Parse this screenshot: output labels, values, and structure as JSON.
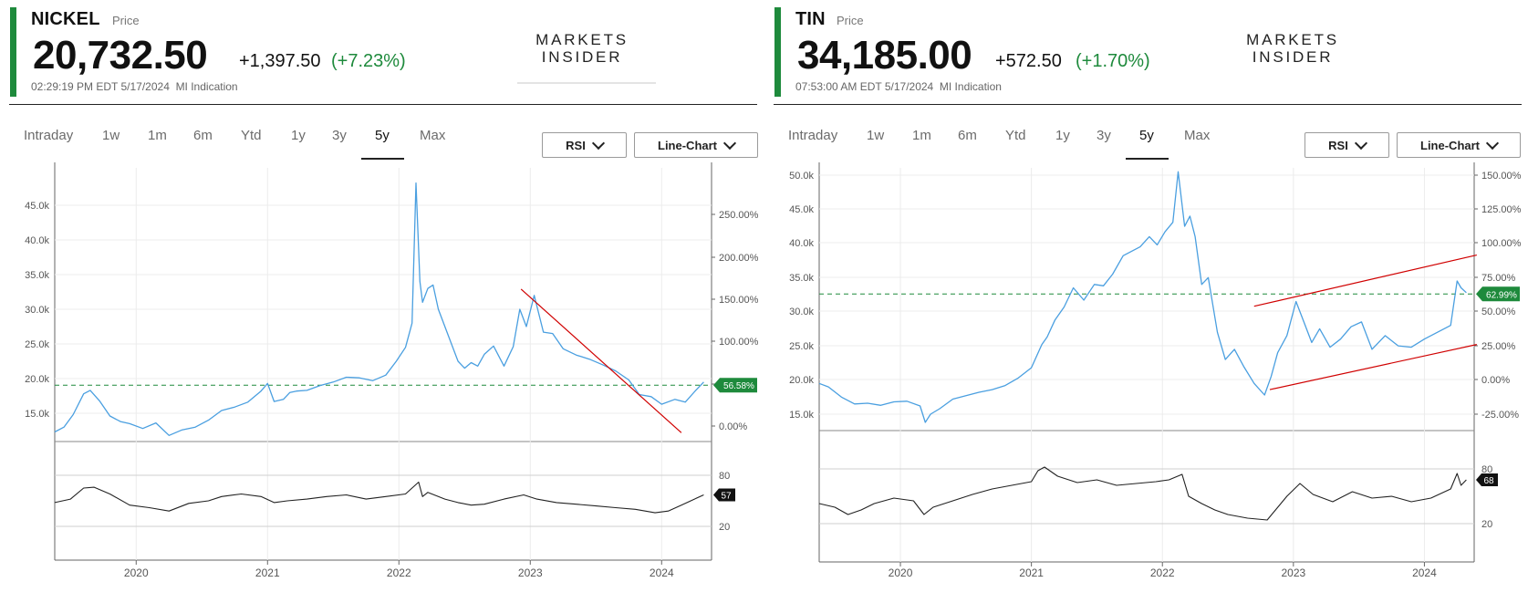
{
  "brand": {
    "logo_line1": "MARKETS",
    "logo_line2": "INSIDER"
  },
  "range_tabs": [
    "Intraday",
    "1w",
    "1m",
    "6m",
    "Ytd",
    "1y",
    "3y",
    "5y",
    "Max"
  ],
  "active_tab": "5y",
  "dropdowns": {
    "indicator": "RSI",
    "chart_type": "Line-Chart"
  },
  "colors": {
    "accent": "#1e8a3c",
    "price_line": "#4a9fe0",
    "trend_line": "#d00000",
    "rsi_line": "#222222",
    "ref_line": "#1e8a3c"
  },
  "icons": {
    "dropdown": "chevron-down-icon"
  },
  "panels": [
    {
      "symbol": "NICKEL",
      "price_label": "Price",
      "price": "20,732.50",
      "change": "+1,397.50",
      "change_pct": "(+7.23%)",
      "timestamp": "02:29:19 PM EDT 5/17/2024",
      "source": "MI Indication",
      "chart_data": {
        "type": "line",
        "x_ticks": [
          "2020",
          "2021",
          "2022",
          "2023",
          "2024"
        ],
        "y_ticks": [
          "15.0k",
          "20.0k",
          "25.0k",
          "30.0k",
          "35.0k",
          "40.0k",
          "45.0k"
        ],
        "y_ticks_pct": [
          "0.00%",
          "50.00%",
          "100.00%",
          "150.00%",
          "200.00%",
          "250.00%"
        ],
        "ylim": [
          11000,
          48500
        ],
        "reference_value": 19050,
        "reference_label": "56.58%",
        "series": [
          {
            "x": [
              2019.38,
              2019.45,
              2019.52,
              2019.6,
              2019.65,
              2019.72,
              2019.8,
              2019.88,
              2019.95,
              2020.05,
              2020.15,
              2020.25,
              2020.35,
              2020.45,
              2020.55,
              2020.65,
              2020.75,
              2020.85,
              2020.95,
              2021.0,
              2021.05,
              2021.12,
              2021.17,
              2021.22,
              2021.3,
              2021.4,
              2021.5,
              2021.6,
              2021.7,
              2021.8,
              2021.9,
              2021.98,
              2022.05,
              2022.1,
              2022.13,
              2022.16,
              2022.18,
              2022.22,
              2022.26,
              2022.3,
              2022.38,
              2022.45,
              2022.5,
              2022.55,
              2022.6,
              2022.65,
              2022.72,
              2022.8,
              2022.87,
              2022.92,
              2022.97,
              2023.03,
              2023.1,
              2023.17,
              2023.25,
              2023.35,
              2023.45,
              2023.55,
              2023.65,
              2023.75,
              2023.83,
              2023.92,
              2024.0,
              2024.1,
              2024.18,
              2024.26,
              2024.32
            ],
            "y": [
              12300,
              13000,
              14800,
              17800,
              18300,
              16800,
              14600,
              13800,
              13500,
              12800,
              13600,
              11800,
              12600,
              13000,
              14000,
              15400,
              15900,
              16600,
              18200,
              19300,
              16700,
              17000,
              18000,
              18200,
              18300,
              19000,
              19500,
              20200,
              20100,
              19700,
              20500,
              22500,
              24500,
              28000,
              48200,
              34000,
              31000,
              33000,
              33500,
              30000,
              26000,
              22500,
              21500,
              22300,
              21800,
              23500,
              24700,
              21800,
              24600,
              30000,
              27500,
              32000,
              26700,
              26500,
              24300,
              23400,
              22800,
              22000,
              21100,
              19800,
              17700,
              17400,
              16300,
              17000,
              16600,
              18300,
              19500
            ]
          }
        ],
        "annotations": [
          {
            "type": "trendline",
            "x": [
              2022.93,
              2024.15
            ],
            "y": [
              32900,
              12200
            ]
          }
        ],
        "rsi": {
          "y_ticks": [
            "20",
            "80"
          ],
          "last_label": "57",
          "x": [
            2019.38,
            2019.5,
            2019.6,
            2019.68,
            2019.8,
            2019.95,
            2020.1,
            2020.25,
            2020.4,
            2020.55,
            2020.65,
            2020.8,
            2020.95,
            2021.05,
            2021.15,
            2021.3,
            2021.45,
            2021.6,
            2021.75,
            2021.9,
            2022.05,
            2022.15,
            2022.18,
            2022.22,
            2022.35,
            2022.45,
            2022.55,
            2022.65,
            2022.8,
            2022.95,
            2023.05,
            2023.2,
            2023.35,
            2023.5,
            2023.65,
            2023.8,
            2023.95,
            2024.05,
            2024.15,
            2024.25,
            2024.32
          ],
          "y": [
            48,
            52,
            65,
            66,
            58,
            45,
            42,
            38,
            47,
            50,
            55,
            58,
            55,
            48,
            50,
            52,
            55,
            57,
            52,
            55,
            58,
            72,
            55,
            60,
            52,
            48,
            45,
            46,
            52,
            57,
            52,
            48,
            46,
            44,
            42,
            40,
            36,
            38,
            45,
            52,
            57
          ]
        }
      }
    },
    {
      "symbol": "TIN",
      "price_label": "Price",
      "price": "34,185.00",
      "change": "+572.50",
      "change_pct": "(+1.70%)",
      "timestamp": "07:53:00 AM EDT 5/17/2024",
      "source": "MI Indication",
      "chart_data": {
        "type": "line",
        "x_ticks": [
          "2020",
          "2021",
          "2022",
          "2023",
          "2024"
        ],
        "y_ticks": [
          "15.0k",
          "20.0k",
          "25.0k",
          "30.0k",
          "35.0k",
          "40.0k",
          "45.0k",
          "50.0k"
        ],
        "y_ticks_pct": [
          "-25.00%",
          "0.00%",
          "25.00%",
          "50.00%",
          "75.00%",
          "100.00%",
          "125.00%",
          "150.00%"
        ],
        "ylim": [
          12500,
          50500
        ],
        "reference_value": 32600,
        "reference_label": "62.99%",
        "series": [
          {
            "x": [
              2019.38,
              2019.45,
              2019.55,
              2019.65,
              2019.75,
              2019.85,
              2019.95,
              2020.05,
              2020.15,
              2020.19,
              2020.23,
              2020.3,
              2020.4,
              2020.5,
              2020.6,
              2020.7,
              2020.8,
              2020.9,
              2021.0,
              2021.08,
              2021.12,
              2021.18,
              2021.25,
              2021.32,
              2021.4,
              2021.48,
              2021.55,
              2021.62,
              2021.7,
              2021.77,
              2021.83,
              2021.9,
              2021.96,
              2022.02,
              2022.08,
              2022.12,
              2022.17,
              2022.21,
              2022.25,
              2022.3,
              2022.35,
              2022.42,
              2022.48,
              2022.55,
              2022.62,
              2022.7,
              2022.78,
              2022.83,
              2022.88,
              2022.95,
              2023.02,
              2023.08,
              2023.14,
              2023.2,
              2023.28,
              2023.36,
              2023.44,
              2023.52,
              2023.6,
              2023.7,
              2023.8,
              2023.9,
              2024.0,
              2024.1,
              2024.2,
              2024.25,
              2024.28,
              2024.32
            ],
            "y": [
              19500,
              19000,
              17500,
              16500,
              16600,
              16300,
              16800,
              16900,
              16200,
              13800,
              15000,
              15800,
              17200,
              17700,
              18200,
              18600,
              19200,
              20300,
              21800,
              25200,
              26300,
              28800,
              30700,
              33500,
              31700,
              34000,
              33800,
              35500,
              38200,
              38900,
              39500,
              41000,
              39800,
              41700,
              43100,
              50500,
              42500,
              44000,
              41000,
              34000,
              35000,
              27000,
              23000,
              24500,
              22000,
              19500,
              17800,
              20500,
              24000,
              26500,
              31500,
              28500,
              25500,
              27500,
              24800,
              26000,
              27800,
              28500,
              24500,
              26500,
              25000,
              24800,
              26000,
              27000,
              28000,
              34500,
              33500,
              32800
            ]
          }
        ],
        "annotations": [
          {
            "type": "trendline",
            "x": [
              2022.7,
              2024.4
            ],
            "y": [
              30800,
              38300
            ]
          },
          {
            "type": "trendline",
            "x": [
              2022.82,
              2024.4
            ],
            "y": [
              18600,
              25200
            ]
          }
        ],
        "rsi": {
          "y_ticks": [
            "20",
            "80"
          ],
          "last_label": "68",
          "x": [
            2019.38,
            2019.5,
            2019.6,
            2019.7,
            2019.8,
            2019.95,
            2020.1,
            2020.18,
            2020.25,
            2020.4,
            2020.55,
            2020.7,
            2020.85,
            2021.0,
            2021.05,
            2021.1,
            2021.2,
            2021.35,
            2021.5,
            2021.65,
            2021.8,
            2021.95,
            2022.05,
            2022.15,
            2022.2,
            2022.3,
            2022.4,
            2022.5,
            2022.65,
            2022.8,
            2022.95,
            2023.05,
            2023.15,
            2023.3,
            2023.45,
            2023.6,
            2023.75,
            2023.9,
            2024.05,
            2024.2,
            2024.25,
            2024.28,
            2024.32
          ],
          "y": [
            42,
            38,
            30,
            35,
            42,
            48,
            45,
            30,
            38,
            45,
            52,
            58,
            62,
            66,
            78,
            82,
            72,
            65,
            68,
            62,
            64,
            66,
            68,
            74,
            50,
            42,
            35,
            30,
            26,
            24,
            50,
            64,
            52,
            44,
            55,
            48,
            50,
            44,
            48,
            58,
            75,
            62,
            68
          ]
        }
      }
    }
  ]
}
